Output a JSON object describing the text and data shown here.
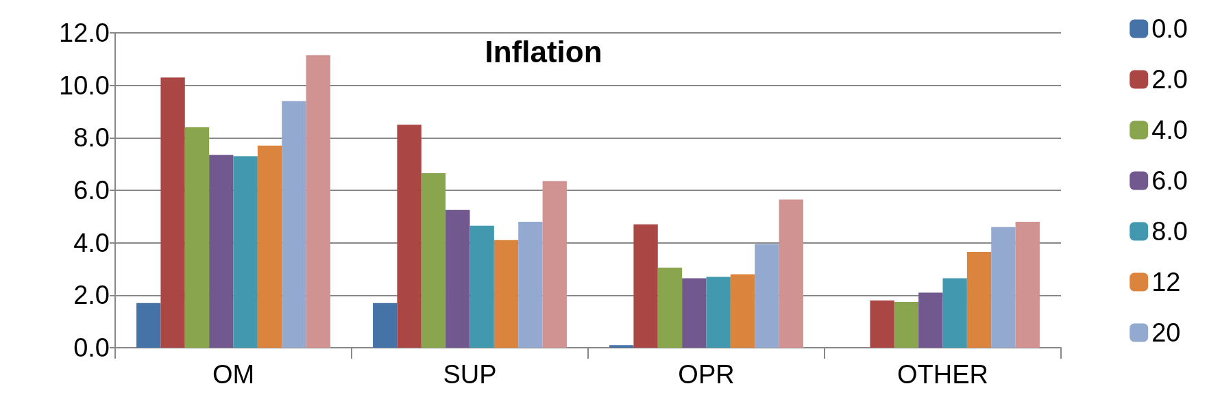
{
  "chart_data": {
    "type": "bar",
    "title": "Inflation",
    "categories": [
      "OM",
      "SUP",
      "OPR",
      "OTHER"
    ],
    "series": [
      {
        "name": "0.0",
        "color": "#4572a7",
        "values": [
          1.7,
          1.7,
          0.1,
          0
        ]
      },
      {
        "name": "2.0",
        "color": "#aa4643",
        "values": [
          10.3,
          8.5,
          4.7,
          1.8
        ]
      },
      {
        "name": "4.0",
        "color": "#89a54e",
        "values": [
          8.4,
          6.65,
          3.05,
          1.75
        ]
      },
      {
        "name": "6.0",
        "color": "#71588f",
        "values": [
          7.35,
          5.25,
          2.65,
          2.1
        ]
      },
      {
        "name": "8.0",
        "color": "#4198af",
        "values": [
          7.3,
          4.65,
          2.7,
          2.65
        ]
      },
      {
        "name": "12",
        "color": "#db843d",
        "values": [
          7.7,
          4.1,
          2.8,
          3.65
        ]
      },
      {
        "name": "20",
        "color": "#93a9cf",
        "values": [
          9.4,
          4.8,
          3.95,
          4.6
        ]
      },
      {
        "color": "#d19392",
        "values": [
          11.15,
          6.35,
          5.65,
          4.8
        ]
      }
    ],
    "ylim": [
      0,
      12
    ],
    "yticks": [
      {
        "value": 0,
        "label": "0.0"
      },
      {
        "value": 2,
        "label": "2.0"
      },
      {
        "value": 4,
        "label": "4.0"
      },
      {
        "value": 6,
        "label": "6.0"
      },
      {
        "value": 8,
        "label": "8.0"
      },
      {
        "value": 10,
        "label": "10.0"
      },
      {
        "value": 12,
        "label": "12.0"
      }
    ],
    "grid": "y",
    "legend": "right"
  }
}
